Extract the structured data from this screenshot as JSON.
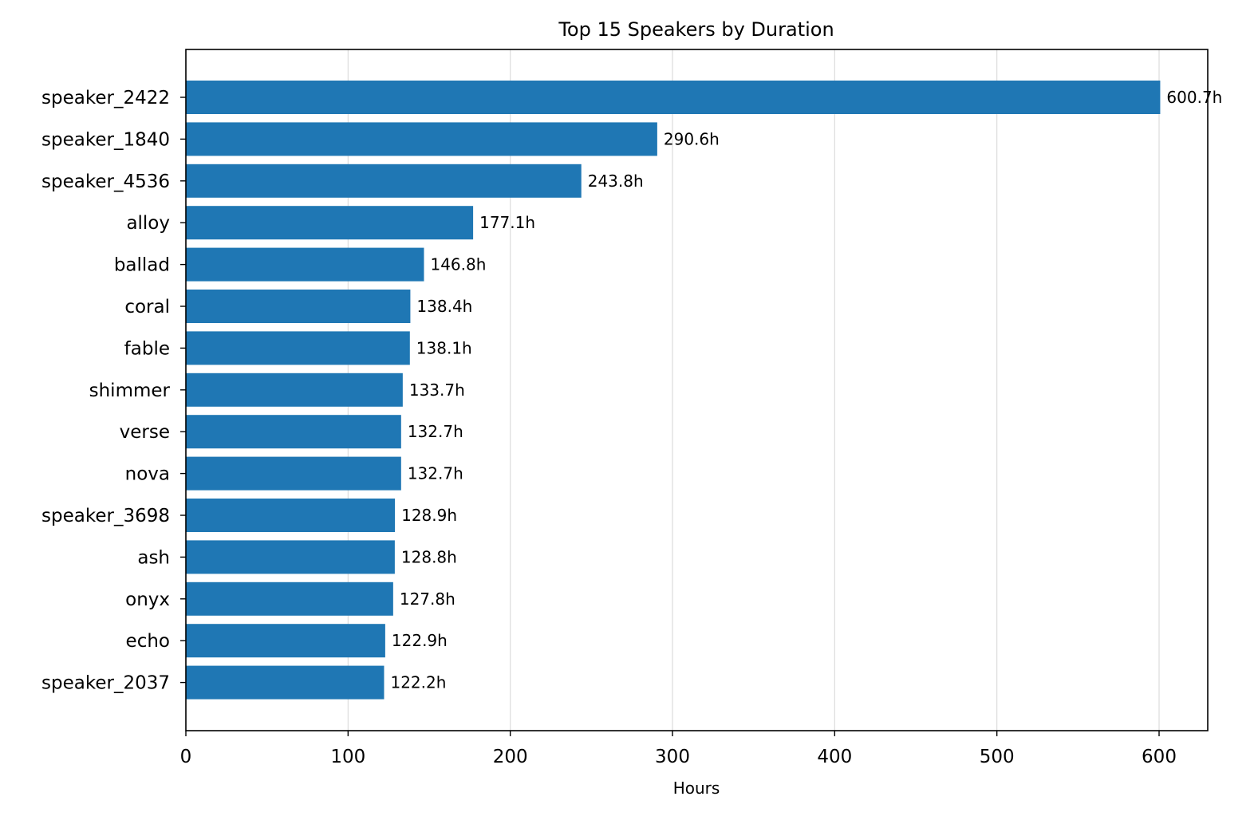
{
  "chart_data": {
    "type": "bar",
    "orientation": "horizontal",
    "title": "Top 15 Speakers by Duration",
    "xlabel": "Hours",
    "ylabel": "",
    "xlim": [
      0,
      630
    ],
    "xticks": [
      0,
      100,
      200,
      300,
      400,
      500,
      600
    ],
    "grid": "x",
    "bar_color": "#1f77b4",
    "value_suffix": "h",
    "categories": [
      "speaker_2422",
      "speaker_1840",
      "speaker_4536",
      "alloy",
      "ballad",
      "coral",
      "fable",
      "shimmer",
      "verse",
      "nova",
      "speaker_3698",
      "ash",
      "onyx",
      "echo",
      "speaker_2037"
    ],
    "values": [
      600.7,
      290.6,
      243.8,
      177.1,
      146.8,
      138.4,
      138.1,
      133.7,
      132.7,
      132.7,
      128.9,
      128.8,
      127.8,
      122.9,
      122.2
    ],
    "labels": [
      "600.7h",
      "290.6h",
      "243.8h",
      "177.1h",
      "146.8h",
      "138.4h",
      "138.1h",
      "133.7h",
      "132.7h",
      "132.7h",
      "128.9h",
      "128.8h",
      "127.8h",
      "122.9h",
      "122.2h"
    ]
  }
}
